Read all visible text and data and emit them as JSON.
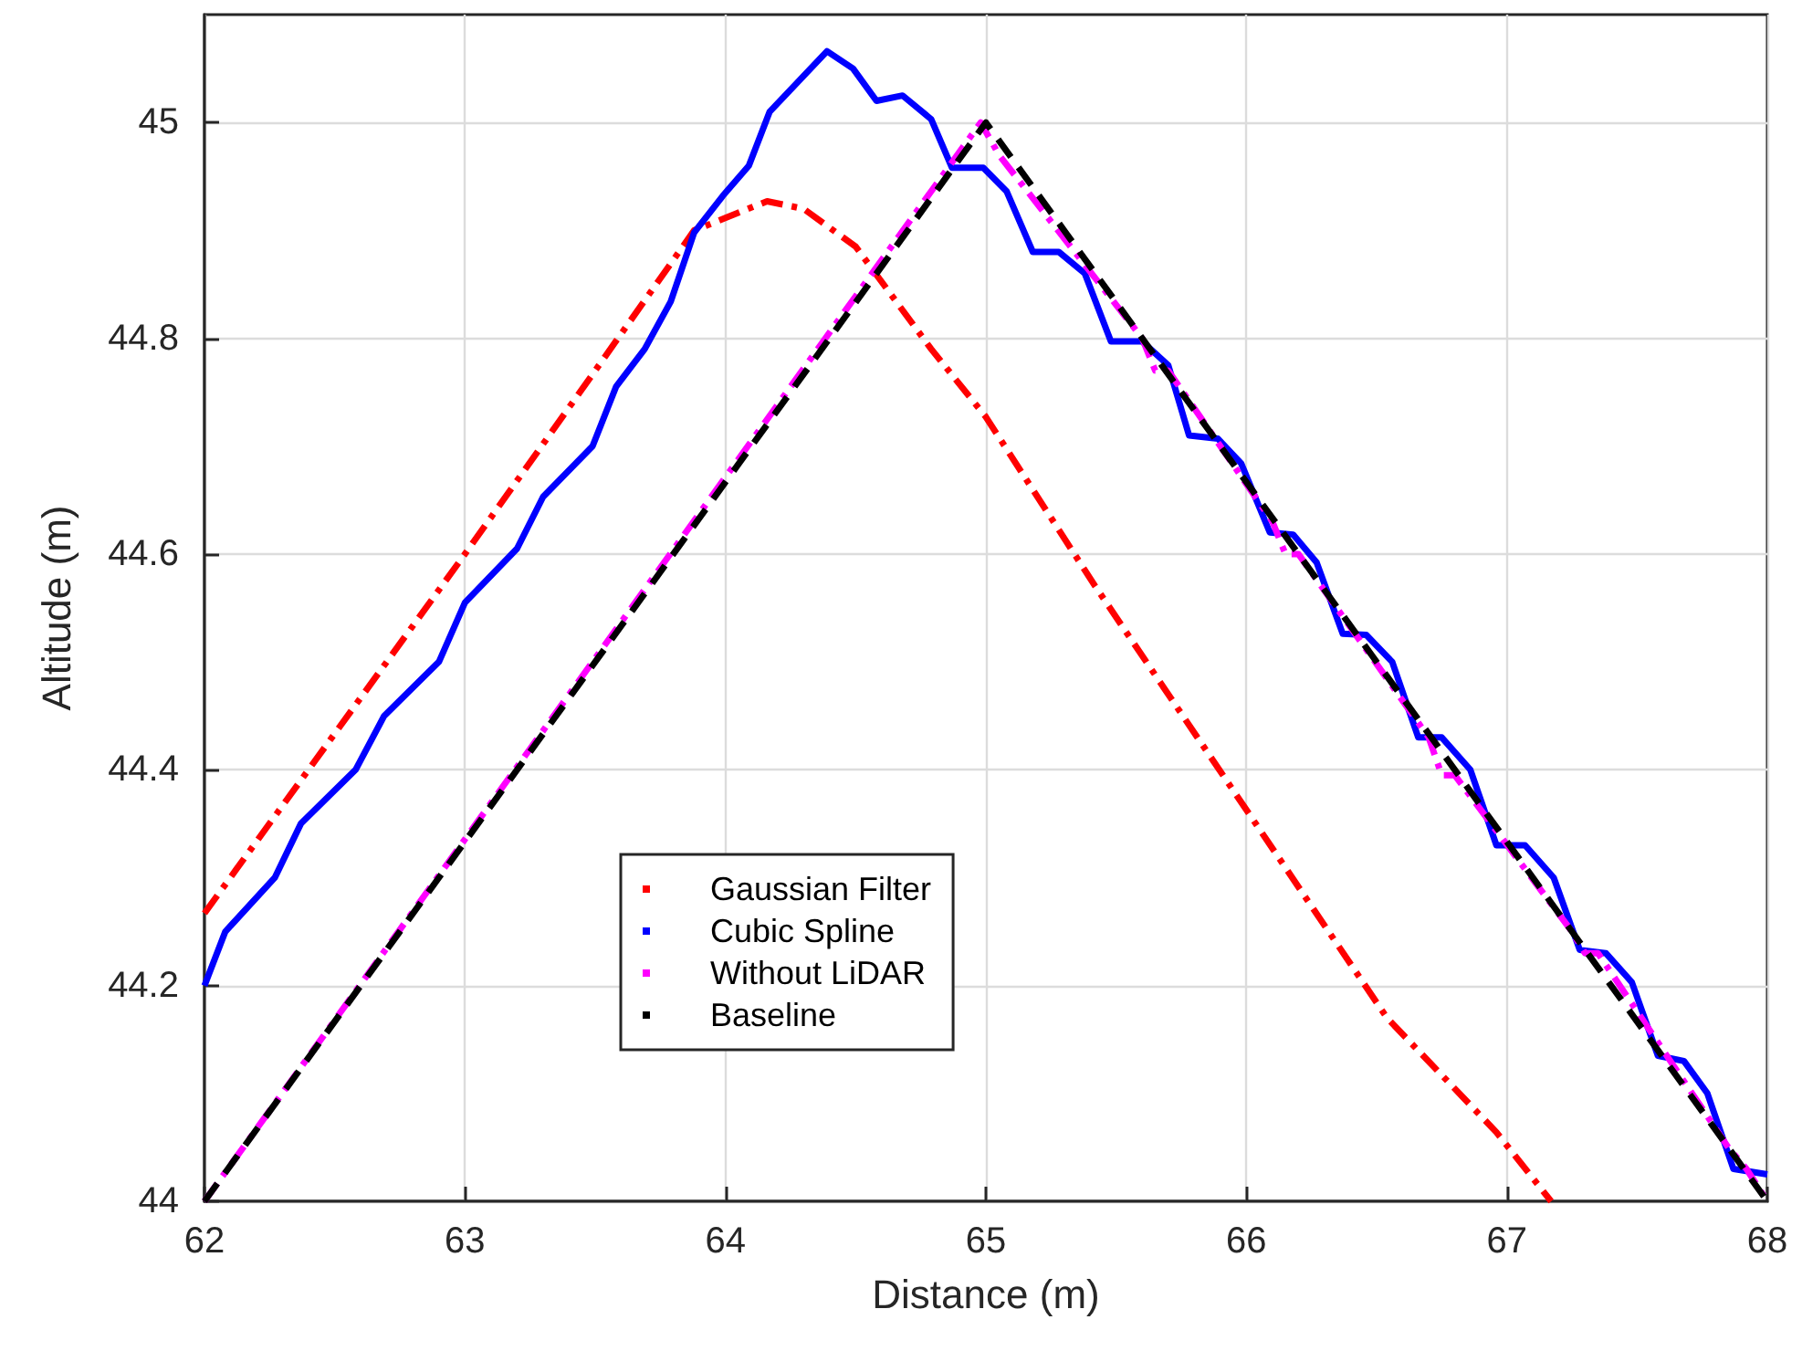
{
  "chart_data": {
    "type": "line",
    "xlabel": "Distance (m)",
    "ylabel": "Altitude (m)",
    "xlim": [
      62,
      68
    ],
    "xticks": [
      62,
      63,
      64,
      65,
      66,
      67,
      68
    ],
    "ylim": [
      44,
      45.1
    ],
    "yticks": [
      44,
      44.2,
      44.4,
      44.6,
      44.8,
      45
    ],
    "grid": true,
    "legend": "bottom",
    "marker": "none",
    "series": [
      {
        "name": "Gaussian Filter",
        "color": "#ff0000",
        "line_style": "dashdot",
        "x": [
          62,
          63,
          63.5,
          63.88,
          64.16,
          64.3,
          64.5,
          64.79,
          65,
          65.42,
          65.98,
          66.54,
          66.96,
          67.17
        ],
        "values": [
          44.267,
          44.6,
          44.77,
          44.9,
          44.927,
          44.92,
          44.885,
          44.79,
          44.727,
          44.57,
          44.37,
          44.17,
          44.064,
          44.0
        ]
      },
      {
        "name": "Cubic Spline",
        "color": "#0000ff",
        "line_style": "solid",
        "x": [
          62,
          62.08,
          62.27,
          62.37,
          62.58,
          62.69,
          62.9,
          63.0,
          63.2,
          63.3,
          63.49,
          63.58,
          63.69,
          63.79,
          63.88,
          63.99,
          64.09,
          64.17,
          64.39,
          64.49,
          64.58,
          64.68,
          64.79,
          64.87,
          64.99,
          65.08,
          65.18,
          65.28,
          65.38,
          65.48,
          65.6,
          65.7,
          65.78,
          65.89,
          65.98,
          66.09,
          66.18,
          66.27,
          66.37,
          66.46,
          66.56,
          66.66,
          66.75,
          66.86,
          66.96,
          67.07,
          67.18,
          67.28,
          67.38,
          67.48,
          67.58,
          67.68,
          67.77,
          67.87,
          68
        ],
        "values": [
          44.2,
          44.25,
          44.3,
          44.35,
          44.4,
          44.45,
          44.5,
          44.555,
          44.605,
          44.653,
          44.7,
          44.755,
          44.79,
          44.834,
          44.898,
          44.932,
          44.96,
          45.01,
          45.066,
          45.05,
          45.02,
          45.025,
          45.003,
          44.958,
          44.958,
          44.936,
          44.88,
          44.88,
          44.86,
          44.797,
          44.797,
          44.775,
          44.71,
          44.707,
          44.684,
          44.62,
          44.618,
          44.592,
          44.526,
          44.525,
          44.5,
          44.43,
          44.43,
          44.4,
          44.33,
          44.33,
          44.3,
          44.233,
          44.23,
          44.203,
          44.135,
          44.13,
          44.1,
          44.03,
          44.025
        ]
      },
      {
        "name": "Without LiDAR",
        "color": "#ff00ff",
        "line_style": "dashdot",
        "x": [
          62,
          64.98,
          65.05,
          65.6,
          65.65,
          65.7,
          66.1,
          66.15,
          66.2,
          66.7,
          66.75,
          66.8,
          67.25,
          67.3,
          67.35,
          67.85,
          67.92,
          68
        ],
        "values": [
          44.0,
          45.0,
          44.97,
          44.8,
          44.77,
          44.77,
          44.63,
          44.6,
          44.6,
          44.43,
          44.395,
          44.395,
          44.25,
          44.23,
          44.23,
          44.05,
          44.03,
          44.0
        ]
      },
      {
        "name": "Baseline",
        "color": "#000000",
        "line_style": "dashed",
        "x": [
          62,
          65,
          68
        ],
        "values": [
          44,
          45,
          44
        ]
      }
    ]
  }
}
